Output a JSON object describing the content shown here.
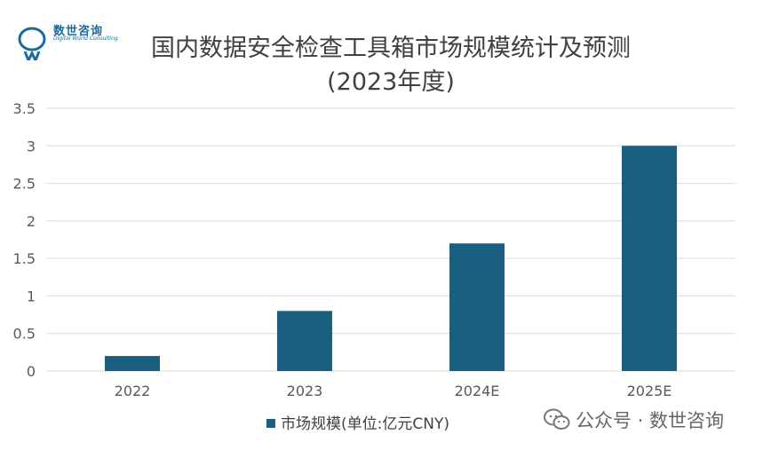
{
  "logo": {
    "brand_cn": "数世咨询",
    "brand_en": "Digital World Consulting"
  },
  "title": {
    "line1": "国内数据安全检查工具箱市场规模统计及预测",
    "line2": "(2023年度)"
  },
  "legend": {
    "label": "市场规模(单位:亿元CNY)"
  },
  "watermark": {
    "text": "公众号 · 数世咨询"
  },
  "colors": {
    "bar": "#1a5e80",
    "grid": "#d9d9d9",
    "text": "#595959",
    "brand": "#1b6a9a"
  },
  "chart_data": {
    "type": "bar",
    "categories": [
      "2022",
      "2023",
      "2024E",
      "2025E"
    ],
    "series": [
      {
        "name": "市场规模(单位:亿元CNY)",
        "values": [
          0.2,
          0.8,
          1.7,
          3.0
        ]
      }
    ],
    "ylim": [
      0,
      3.5
    ],
    "yticks": [
      "0",
      "0.5",
      "1",
      "1.5",
      "2",
      "2.5",
      "3",
      "3.5"
    ],
    "grid": true,
    "legend_position": "bottom"
  }
}
